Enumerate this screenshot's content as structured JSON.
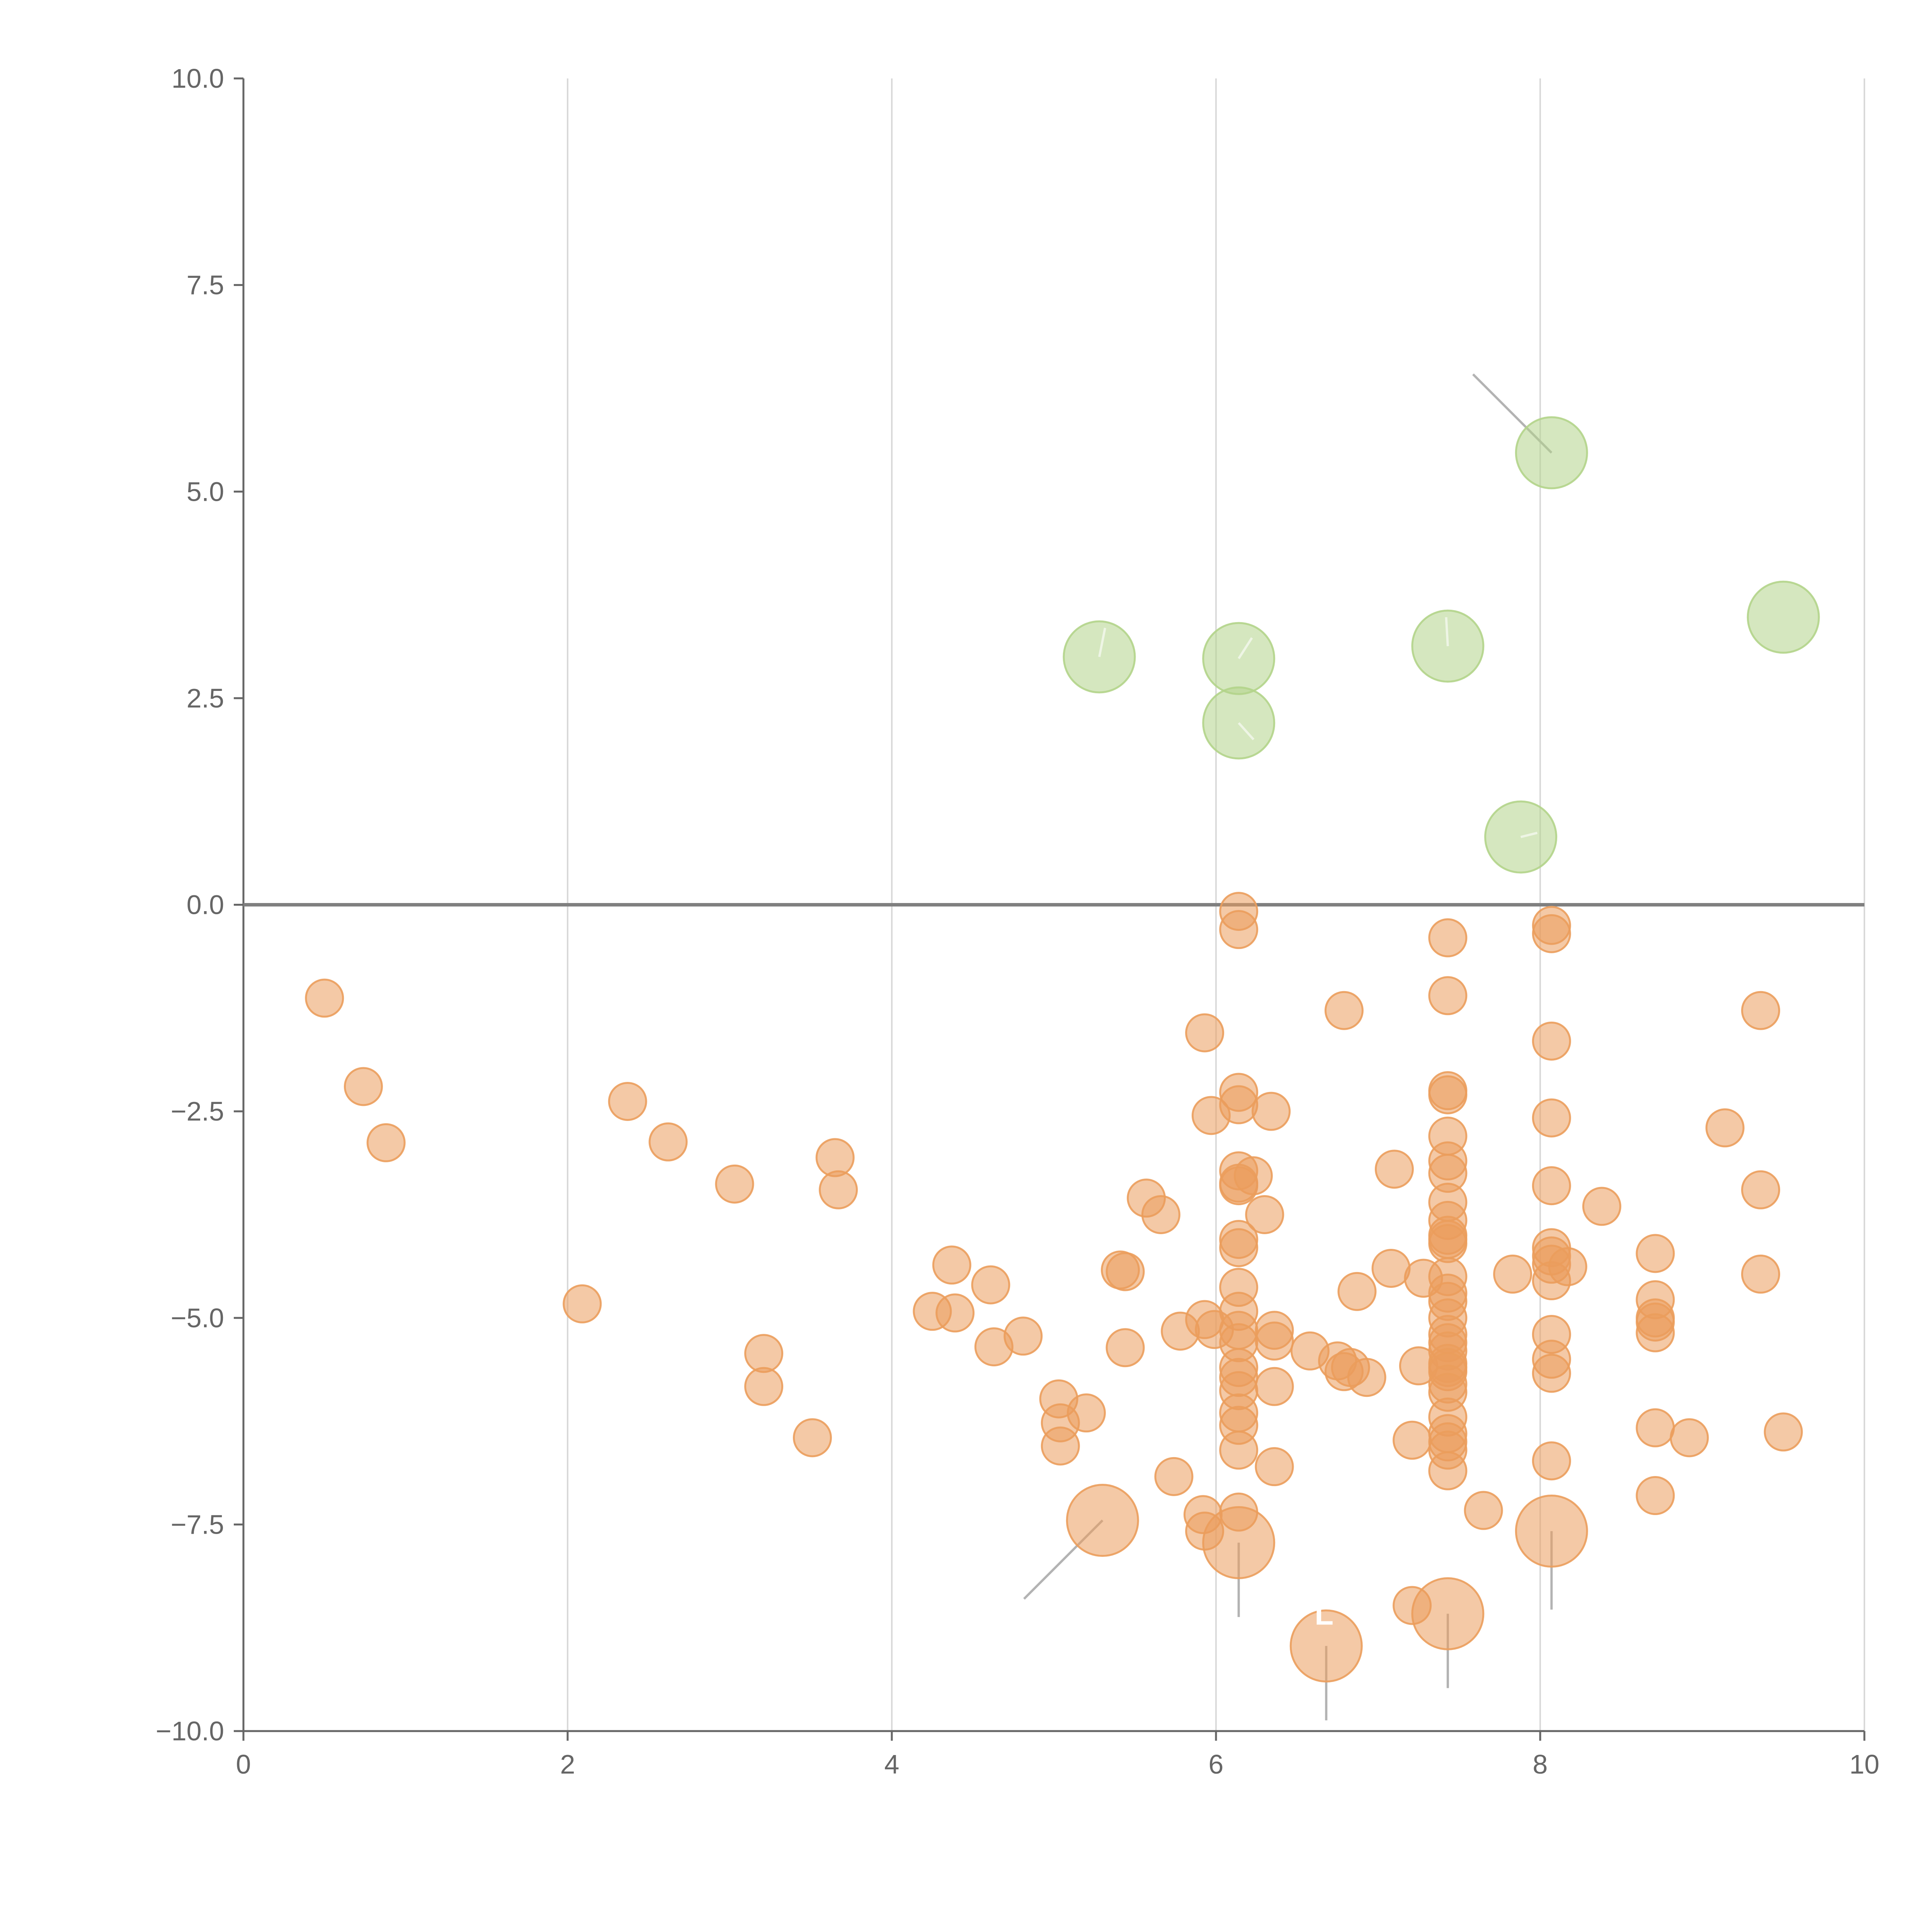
{
  "chart_data": {
    "type": "scatter",
    "title": "",
    "xlabel": "",
    "ylabel": "",
    "xlim": [
      0,
      10
    ],
    "ylim": [
      -10,
      10
    ],
    "x_ticks": [
      "0",
      "2",
      "4",
      "6",
      "8",
      "10"
    ],
    "y_ticks": [
      "−10.0",
      "−7.5",
      "−5.0",
      "−2.5",
      "0.0",
      "2.5",
      "5.0",
      "7.5",
      "10.0"
    ],
    "grid": "vertical",
    "legend": "none",
    "colors": {
      "positive": "#b3d48a",
      "negative": "#eb9d5c",
      "axis": "#666666"
    },
    "series": [
      {
        "name": "positive",
        "points": [
          {
            "x": 8.07,
            "y": 5.47,
            "size": "large",
            "leader": [
              -0.95,
              0.95
            ]
          },
          {
            "x": 9.5,
            "y": 3.48,
            "size": "large"
          },
          {
            "x": 5.28,
            "y": 3.0,
            "size": "large",
            "leader": [
              0.07,
              0.35
            ]
          },
          {
            "x": 6.14,
            "y": 2.98,
            "size": "large",
            "leader": [
              0.16,
              0.25
            ]
          },
          {
            "x": 7.43,
            "y": 3.13,
            "size": "large",
            "leader": [
              -0.02,
              0.35
            ]
          },
          {
            "x": 6.14,
            "y": 2.2,
            "size": "large",
            "leader": [
              0.18,
              -0.2
            ]
          },
          {
            "x": 7.88,
            "y": 0.82,
            "size": "large",
            "leader": [
              0.2,
              0.05
            ]
          }
        ]
      },
      {
        "name": "negative",
        "points": [
          {
            "x": 0.5,
            "y": -1.13
          },
          {
            "x": 0.74,
            "y": -2.2
          },
          {
            "x": 0.88,
            "y": -2.88
          },
          {
            "x": 2.09,
            "y": -4.83
          },
          {
            "x": 2.37,
            "y": -2.38
          },
          {
            "x": 2.62,
            "y": -2.87
          },
          {
            "x": 3.03,
            "y": -3.38
          },
          {
            "x": 3.21,
            "y": -5.43
          },
          {
            "x": 3.21,
            "y": -5.83
          },
          {
            "x": 3.51,
            "y": -6.45
          },
          {
            "x": 3.65,
            "y": -3.06
          },
          {
            "x": 3.67,
            "y": -3.45
          },
          {
            "x": 4.25,
            "y": -4.92
          },
          {
            "x": 4.37,
            "y": -4.36
          },
          {
            "x": 4.39,
            "y": -4.94
          },
          {
            "x": 4.61,
            "y": -4.6
          },
          {
            "x": 4.63,
            "y": -5.35
          },
          {
            "x": 4.81,
            "y": -5.22
          },
          {
            "x": 5.03,
            "y": -5.98
          },
          {
            "x": 5.04,
            "y": -6.27
          },
          {
            "x": 5.04,
            "y": -6.55
          },
          {
            "x": 5.2,
            "y": -6.15
          },
          {
            "x": 5.3,
            "y": -7.45,
            "size": "large",
            "leader": [
              -0.95,
              -0.95
            ]
          },
          {
            "x": 5.41,
            "y": -4.42
          },
          {
            "x": 5.44,
            "y": -4.44
          },
          {
            "x": 5.44,
            "y": -5.36
          },
          {
            "x": 5.57,
            "y": -3.55
          },
          {
            "x": 5.66,
            "y": -3.75
          },
          {
            "x": 5.74,
            "y": -6.92
          },
          {
            "x": 5.78,
            "y": -5.16
          },
          {
            "x": 5.92,
            "y": -7.38
          },
          {
            "x": 5.93,
            "y": -1.55
          },
          {
            "x": 5.93,
            "y": -5.02
          },
          {
            "x": 5.93,
            "y": -7.58
          },
          {
            "x": 5.97,
            "y": -2.55
          },
          {
            "x": 5.99,
            "y": -5.14
          },
          {
            "x": 6.14,
            "y": -0.08
          },
          {
            "x": 6.14,
            "y": -0.3
          },
          {
            "x": 6.14,
            "y": -2.27
          },
          {
            "x": 6.14,
            "y": -2.42
          },
          {
            "x": 6.14,
            "y": -3.22
          },
          {
            "x": 6.14,
            "y": -3.37
          },
          {
            "x": 6.14,
            "y": -3.4
          },
          {
            "x": 6.14,
            "y": -4.05
          },
          {
            "x": 6.14,
            "y": -4.15
          },
          {
            "x": 6.14,
            "y": -4.63
          },
          {
            "x": 6.14,
            "y": -4.92
          },
          {
            "x": 6.14,
            "y": -5.15
          },
          {
            "x": 6.14,
            "y": -5.3
          },
          {
            "x": 6.14,
            "y": -5.6
          },
          {
            "x": 6.14,
            "y": -5.72
          },
          {
            "x": 6.14,
            "y": -5.88
          },
          {
            "x": 6.14,
            "y": -6.15
          },
          {
            "x": 6.14,
            "y": -6.3
          },
          {
            "x": 6.14,
            "y": -6.6
          },
          {
            "x": 6.14,
            "y": -7.35
          },
          {
            "x": 6.14,
            "y": -7.72,
            "size": "large",
            "leader": [
              0.0,
              -0.9
            ]
          },
          {
            "x": 6.23,
            "y": -3.28
          },
          {
            "x": 6.3,
            "y": -3.75
          },
          {
            "x": 6.34,
            "y": -2.5
          },
          {
            "x": 6.36,
            "y": -5.15
          },
          {
            "x": 6.36,
            "y": -5.28
          },
          {
            "x": 6.36,
            "y": -5.83
          },
          {
            "x": 6.36,
            "y": -6.8
          },
          {
            "x": 6.58,
            "y": -5.4
          },
          {
            "x": 6.75,
            "y": -5.52
          },
          {
            "x": 6.79,
            "y": -1.28
          },
          {
            "x": 6.79,
            "y": -5.65
          },
          {
            "x": 6.83,
            "y": -5.6
          },
          {
            "x": 6.87,
            "y": -4.68
          },
          {
            "x": 6.93,
            "y": -5.72
          },
          {
            "x": 6.68,
            "y": -8.97,
            "size": "large",
            "leader": [
              0.0,
              -0.9
            ]
          },
          {
            "x": 7.08,
            "y": -4.4
          },
          {
            "x": 7.1,
            "y": -3.2
          },
          {
            "x": 7.21,
            "y": -6.48
          },
          {
            "x": 7.21,
            "y": -8.48
          },
          {
            "x": 7.25,
            "y": -5.58
          },
          {
            "x": 7.28,
            "y": -4.52
          },
          {
            "x": 7.43,
            "y": -0.4
          },
          {
            "x": 7.43,
            "y": -1.1
          },
          {
            "x": 7.43,
            "y": -2.25
          },
          {
            "x": 7.43,
            "y": -2.3
          },
          {
            "x": 7.43,
            "y": -2.8
          },
          {
            "x": 7.43,
            "y": -3.1
          },
          {
            "x": 7.43,
            "y": -3.25
          },
          {
            "x": 7.43,
            "y": -3.6
          },
          {
            "x": 7.43,
            "y": -3.82
          },
          {
            "x": 7.43,
            "y": -4.0
          },
          {
            "x": 7.43,
            "y": -4.05
          },
          {
            "x": 7.43,
            "y": -4.1
          },
          {
            "x": 7.43,
            "y": -4.5
          },
          {
            "x": 7.43,
            "y": -4.7
          },
          {
            "x": 7.43,
            "y": -4.8
          },
          {
            "x": 7.43,
            "y": -5.0
          },
          {
            "x": 7.43,
            "y": -5.2
          },
          {
            "x": 7.43,
            "y": -5.3
          },
          {
            "x": 7.43,
            "y": -5.4
          },
          {
            "x": 7.43,
            "y": -5.55
          },
          {
            "x": 7.43,
            "y": -5.6
          },
          {
            "x": 7.43,
            "y": -5.65
          },
          {
            "x": 7.43,
            "y": -5.8
          },
          {
            "x": 7.43,
            "y": -5.9
          },
          {
            "x": 7.43,
            "y": -6.2
          },
          {
            "x": 7.43,
            "y": -6.4
          },
          {
            "x": 7.43,
            "y": -6.5
          },
          {
            "x": 7.43,
            "y": -6.6
          },
          {
            "x": 7.43,
            "y": -6.85
          },
          {
            "x": 7.43,
            "y": -8.58,
            "size": "large",
            "leader": [
              0.0,
              -0.9
            ]
          },
          {
            "x": 7.65,
            "y": -7.33
          },
          {
            "x": 7.83,
            "y": -4.47
          },
          {
            "x": 8.07,
            "y": -0.25
          },
          {
            "x": 8.07,
            "y": -0.35
          },
          {
            "x": 8.07,
            "y": -1.65
          },
          {
            "x": 8.07,
            "y": -2.58
          },
          {
            "x": 8.07,
            "y": -3.4
          },
          {
            "x": 8.07,
            "y": -4.15
          },
          {
            "x": 8.07,
            "y": -4.25
          },
          {
            "x": 8.07,
            "y": -4.35
          },
          {
            "x": 8.07,
            "y": -4.55
          },
          {
            "x": 8.07,
            "y": -5.2
          },
          {
            "x": 8.07,
            "y": -5.5
          },
          {
            "x": 8.07,
            "y": -5.67
          },
          {
            "x": 8.07,
            "y": -6.73
          },
          {
            "x": 8.07,
            "y": -7.58,
            "size": "large",
            "leader": [
              0.0,
              -0.95
            ]
          },
          {
            "x": 8.17,
            "y": -4.38
          },
          {
            "x": 8.38,
            "y": -3.65
          },
          {
            "x": 8.71,
            "y": -4.22
          },
          {
            "x": 8.71,
            "y": -4.78
          },
          {
            "x": 8.71,
            "y": -5.0
          },
          {
            "x": 8.71,
            "y": -5.05
          },
          {
            "x": 8.71,
            "y": -5.18
          },
          {
            "x": 8.71,
            "y": -6.33
          },
          {
            "x": 8.71,
            "y": -7.15
          },
          {
            "x": 8.92,
            "y": -6.45
          },
          {
            "x": 9.14,
            "y": -2.7
          },
          {
            "x": 9.36,
            "y": -1.28
          },
          {
            "x": 9.36,
            "y": -3.45
          },
          {
            "x": 9.36,
            "y": -4.47
          },
          {
            "x": 9.5,
            "y": -6.38
          }
        ]
      }
    ],
    "annotations": [
      {
        "text": "L",
        "near": "bubble at x 6.68, y -8.97"
      }
    ]
  }
}
